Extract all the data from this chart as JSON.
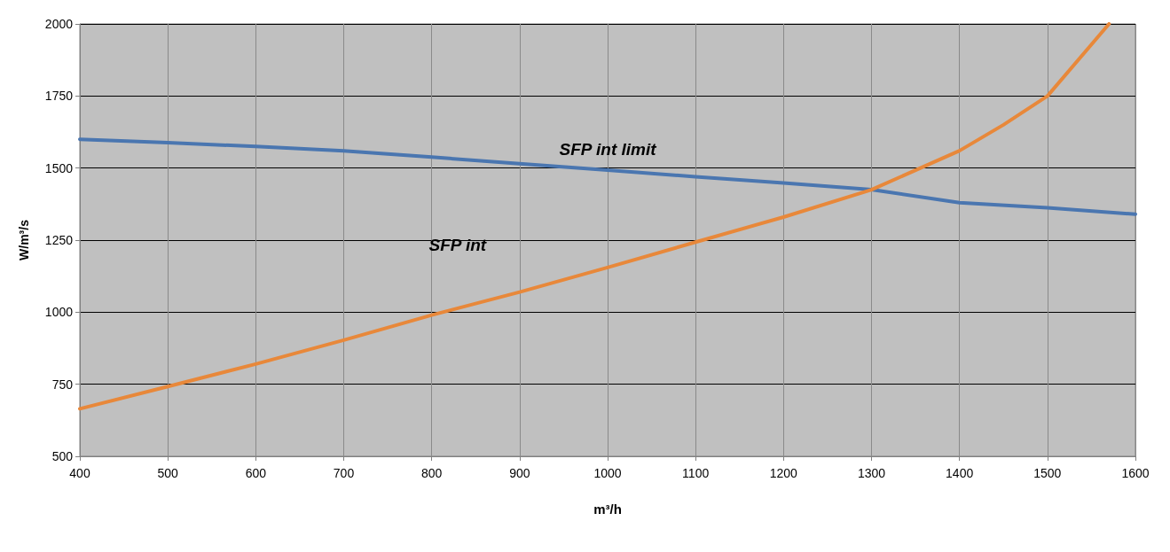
{
  "chart_data": {
    "type": "line",
    "xlabel": "m³/h",
    "ylabel": "W/m³/s",
    "xlim": [
      400,
      1600
    ],
    "xticks": [
      400,
      500,
      600,
      700,
      800,
      900,
      1000,
      1100,
      1200,
      1300,
      1400,
      1500,
      1600
    ],
    "ylim": [
      500,
      2000
    ],
    "yticks": [
      500,
      750,
      1000,
      1250,
      1500,
      1750,
      2000
    ],
    "grid": true,
    "legend": false,
    "marker": "none",
    "line_style": "solid",
    "series": [
      {
        "name": "SFP int limit",
        "color": "#4a76b0",
        "x": [
          400,
          500,
          600,
          700,
          800,
          900,
          1000,
          1100,
          1200,
          1300,
          1400,
          1500,
          1600
        ],
        "values": [
          1600,
          1588,
          1575,
          1560,
          1538,
          1515,
          1493,
          1470,
          1448,
          1425,
          1380,
          1362,
          1340
        ]
      },
      {
        "name": "SFP int",
        "color": "#e8883a",
        "x": [
          400,
          500,
          600,
          700,
          800,
          900,
          1000,
          1100,
          1200,
          1300,
          1400,
          1450,
          1500,
          1570
        ],
        "values": [
          665,
          742,
          820,
          903,
          990,
          1070,
          1155,
          1243,
          1330,
          1425,
          1560,
          1650,
          1750,
          2000
        ]
      }
    ]
  }
}
